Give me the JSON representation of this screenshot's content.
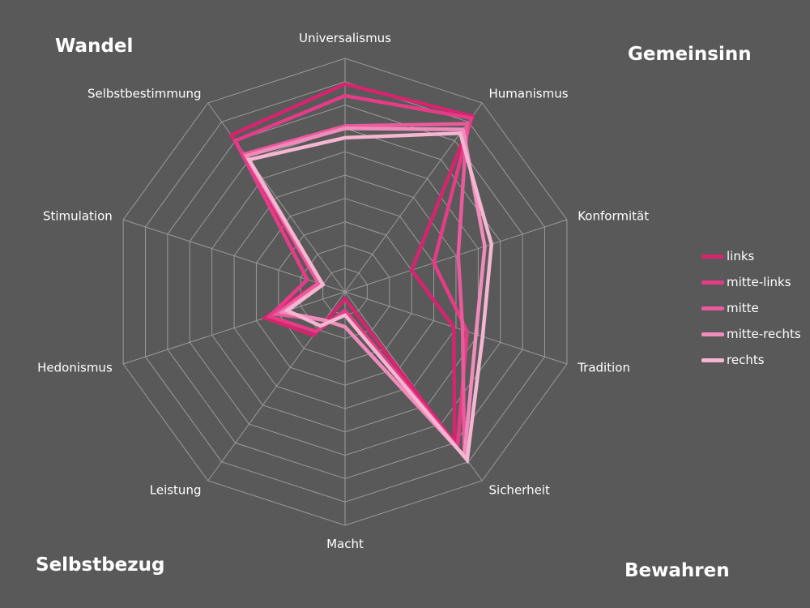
{
  "corner_labels": {
    "top_left": "Wandel",
    "top_right": "Gemeinsinn",
    "bottom_left": "Selbstbezug",
    "bottom_right": "Bewahren"
  },
  "chart_data": {
    "type": "radar",
    "title": "",
    "categories": [
      "Universalismus",
      "Humanismus",
      "Konformität",
      "Tradition",
      "Sicherheit",
      "Macht",
      "Leistung",
      "Hedonismus",
      "Stimulation",
      "Selbstbestimmung"
    ],
    "rlim": [
      0,
      10
    ],
    "grid": true,
    "legend_position": "right",
    "series": [
      {
        "name": "links",
        "color": "#d6246f",
        "values": [
          8.9,
          9.3,
          3.0,
          4.9,
          8.0,
          0.3,
          2.3,
          3.6,
          1.2,
          8.3
        ]
      },
      {
        "name": "mitte-links",
        "color": "#e63c88",
        "values": [
          8.4,
          9.2,
          4.0,
          5.5,
          8.2,
          0.8,
          2.1,
          3.4,
          1.7,
          8.0
        ]
      },
      {
        "name": "mitte",
        "color": "#ea5a9c",
        "values": [
          7.1,
          8.9,
          5.1,
          5.3,
          8.7,
          1.5,
          1.5,
          3.1,
          1.2,
          7.3
        ]
      },
      {
        "name": "mitte-rechts",
        "color": "#f08cbb",
        "values": [
          7.0,
          8.6,
          6.3,
          5.9,
          8.7,
          1.5,
          1.5,
          2.8,
          1.0,
          7.2
        ]
      },
      {
        "name": "rechts",
        "color": "#f5b6d2",
        "values": [
          6.6,
          8.4,
          6.6,
          6.2,
          8.9,
          1.0,
          1.8,
          2.6,
          1.0,
          7.0
        ]
      }
    ]
  }
}
